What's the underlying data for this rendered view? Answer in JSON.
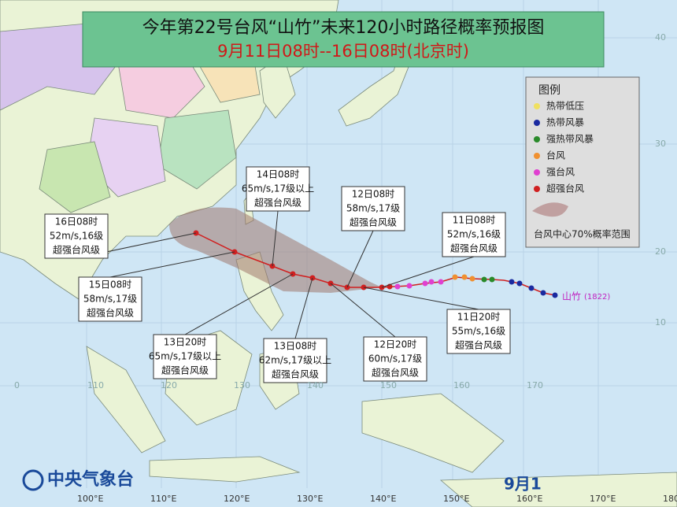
{
  "header": {
    "title": "今年第22号台风“山竹”未来120小时路径概率预报图",
    "subtitle": "9月11日08时--16日08时(北京时)"
  },
  "legend": {
    "title": "图例",
    "items": [
      "热带低压",
      "热带风暴",
      "强热带风暴",
      "台风",
      "强台风",
      "超强台风"
    ],
    "cone": "台风中心70%概率范围"
  },
  "storm_label": {
    "name": "山竹",
    "code": "(1822)"
  },
  "callouts": [
    {
      "time": "16日08时",
      "wind": "52m/s,16级",
      "level": "超强台风级"
    },
    {
      "time": "15日08时",
      "wind": "58m/s,17级",
      "level": "超强台风级"
    },
    {
      "time": "14日08时",
      "wind": "65m/s,17级以上",
      "level": "超强台风级"
    },
    {
      "time": "13日20时",
      "wind": "65m/s,17级以上",
      "level": "超强台风级"
    },
    {
      "time": "13日08时",
      "wind": "62m/s,17级以上",
      "level": "超强台风级"
    },
    {
      "time": "12日08时",
      "wind": "58m/s,17级",
      "level": "超强台风级"
    },
    {
      "time": "12日20时",
      "wind": "60m/s,17级",
      "level": "超强台风级"
    },
    {
      "time": "11日08时",
      "wind": "52m/s,16级",
      "level": "超强台风级"
    },
    {
      "time": "11日20时",
      "wind": "55m/s,16级",
      "level": "超强台风级"
    }
  ],
  "lon_labels": [
    "100°E",
    "110°E",
    "120°E",
    "130°E",
    "140°E",
    "150°E",
    "160°E",
    "170°E",
    "180°E"
  ],
  "grid_lon_labels": [
    "0",
    "110",
    "120",
    "130",
    "140",
    "150",
    "160",
    "170"
  ],
  "grid_lat_labels": [
    "40",
    "30",
    "20",
    "10"
  ],
  "footer": {
    "agency": "中央气象台",
    "date": "9月1"
  }
}
